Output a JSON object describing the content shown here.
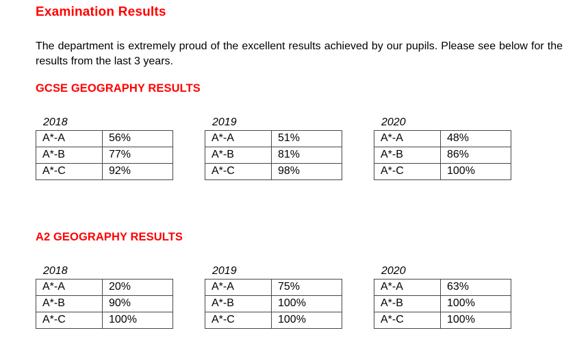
{
  "page": {
    "title": "Examination Results",
    "intro": "The department is extremely proud of the excellent results achieved by our pupils. Please see below for the results from the last 3 years."
  },
  "colors": {
    "heading_red": "#ff0000",
    "body_text": "#000000",
    "table_border": "#454545",
    "background": "#ffffff"
  },
  "sections": [
    {
      "heading": "GCSE GEOGRAPHY RESULTS",
      "tables": [
        {
          "year": "2018",
          "rows": [
            [
              "A*-A",
              "56%"
            ],
            [
              "A*-B",
              "77%"
            ],
            [
              "A*-C",
              "92%"
            ]
          ]
        },
        {
          "year": "2019",
          "rows": [
            [
              "A*-A",
              "51%"
            ],
            [
              "A*-B",
              "81%"
            ],
            [
              "A*-C",
              "98%"
            ]
          ]
        },
        {
          "year": "2020",
          "rows": [
            [
              "A*-A",
              "48%"
            ],
            [
              "A*-B",
              "86%"
            ],
            [
              "A*-C",
              "100%"
            ]
          ]
        }
      ]
    },
    {
      "heading": "A2 GEOGRAPHY RESULTS",
      "tables": [
        {
          "year": "2018",
          "rows": [
            [
              "A*-A",
              "20%"
            ],
            [
              "A*-B",
              "90%"
            ],
            [
              "A*-C",
              "100%"
            ]
          ]
        },
        {
          "year": "2019",
          "rows": [
            [
              "A*-A",
              "75%"
            ],
            [
              "A*-B",
              "100%"
            ],
            [
              "A*-C",
              "100%"
            ]
          ]
        },
        {
          "year": "2020",
          "rows": [
            [
              "A*-A",
              "63%"
            ],
            [
              "A*-B",
              "100%"
            ],
            [
              "A*-C",
              "100%"
            ]
          ]
        }
      ]
    }
  ]
}
